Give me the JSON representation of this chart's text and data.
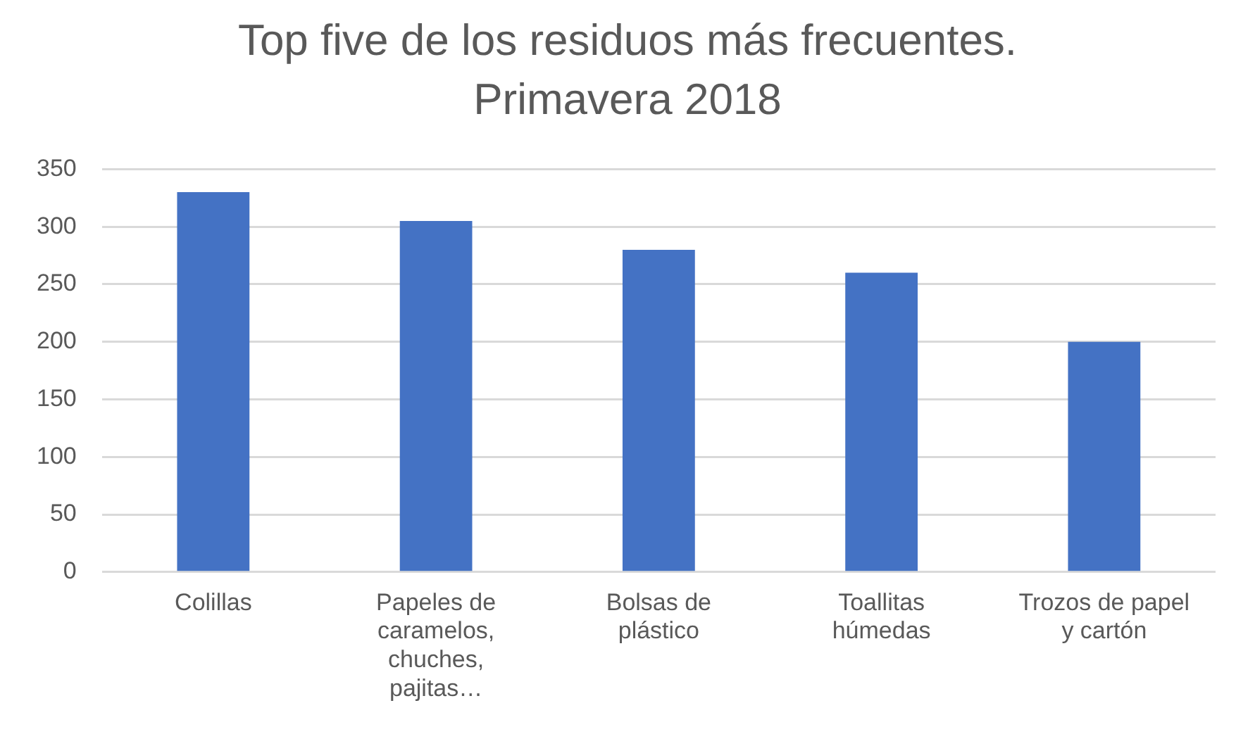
{
  "chart_data": {
    "type": "bar",
    "title": "Top five de los residuos más frecuentes. Primavera 2018",
    "categories": [
      "Colillas",
      "Papeles de caramelos, chuches, pajitas…",
      "Bolsas de plástico",
      "Toallitas húmedas",
      "Trozos de papel y cartón"
    ],
    "values": [
      330,
      305,
      280,
      260,
      200
    ],
    "color": "#4472c4",
    "ylim": [
      0,
      350
    ],
    "yticks": [
      0,
      50,
      100,
      150,
      200,
      250,
      300,
      350
    ],
    "grid": "y",
    "legend": false
  }
}
